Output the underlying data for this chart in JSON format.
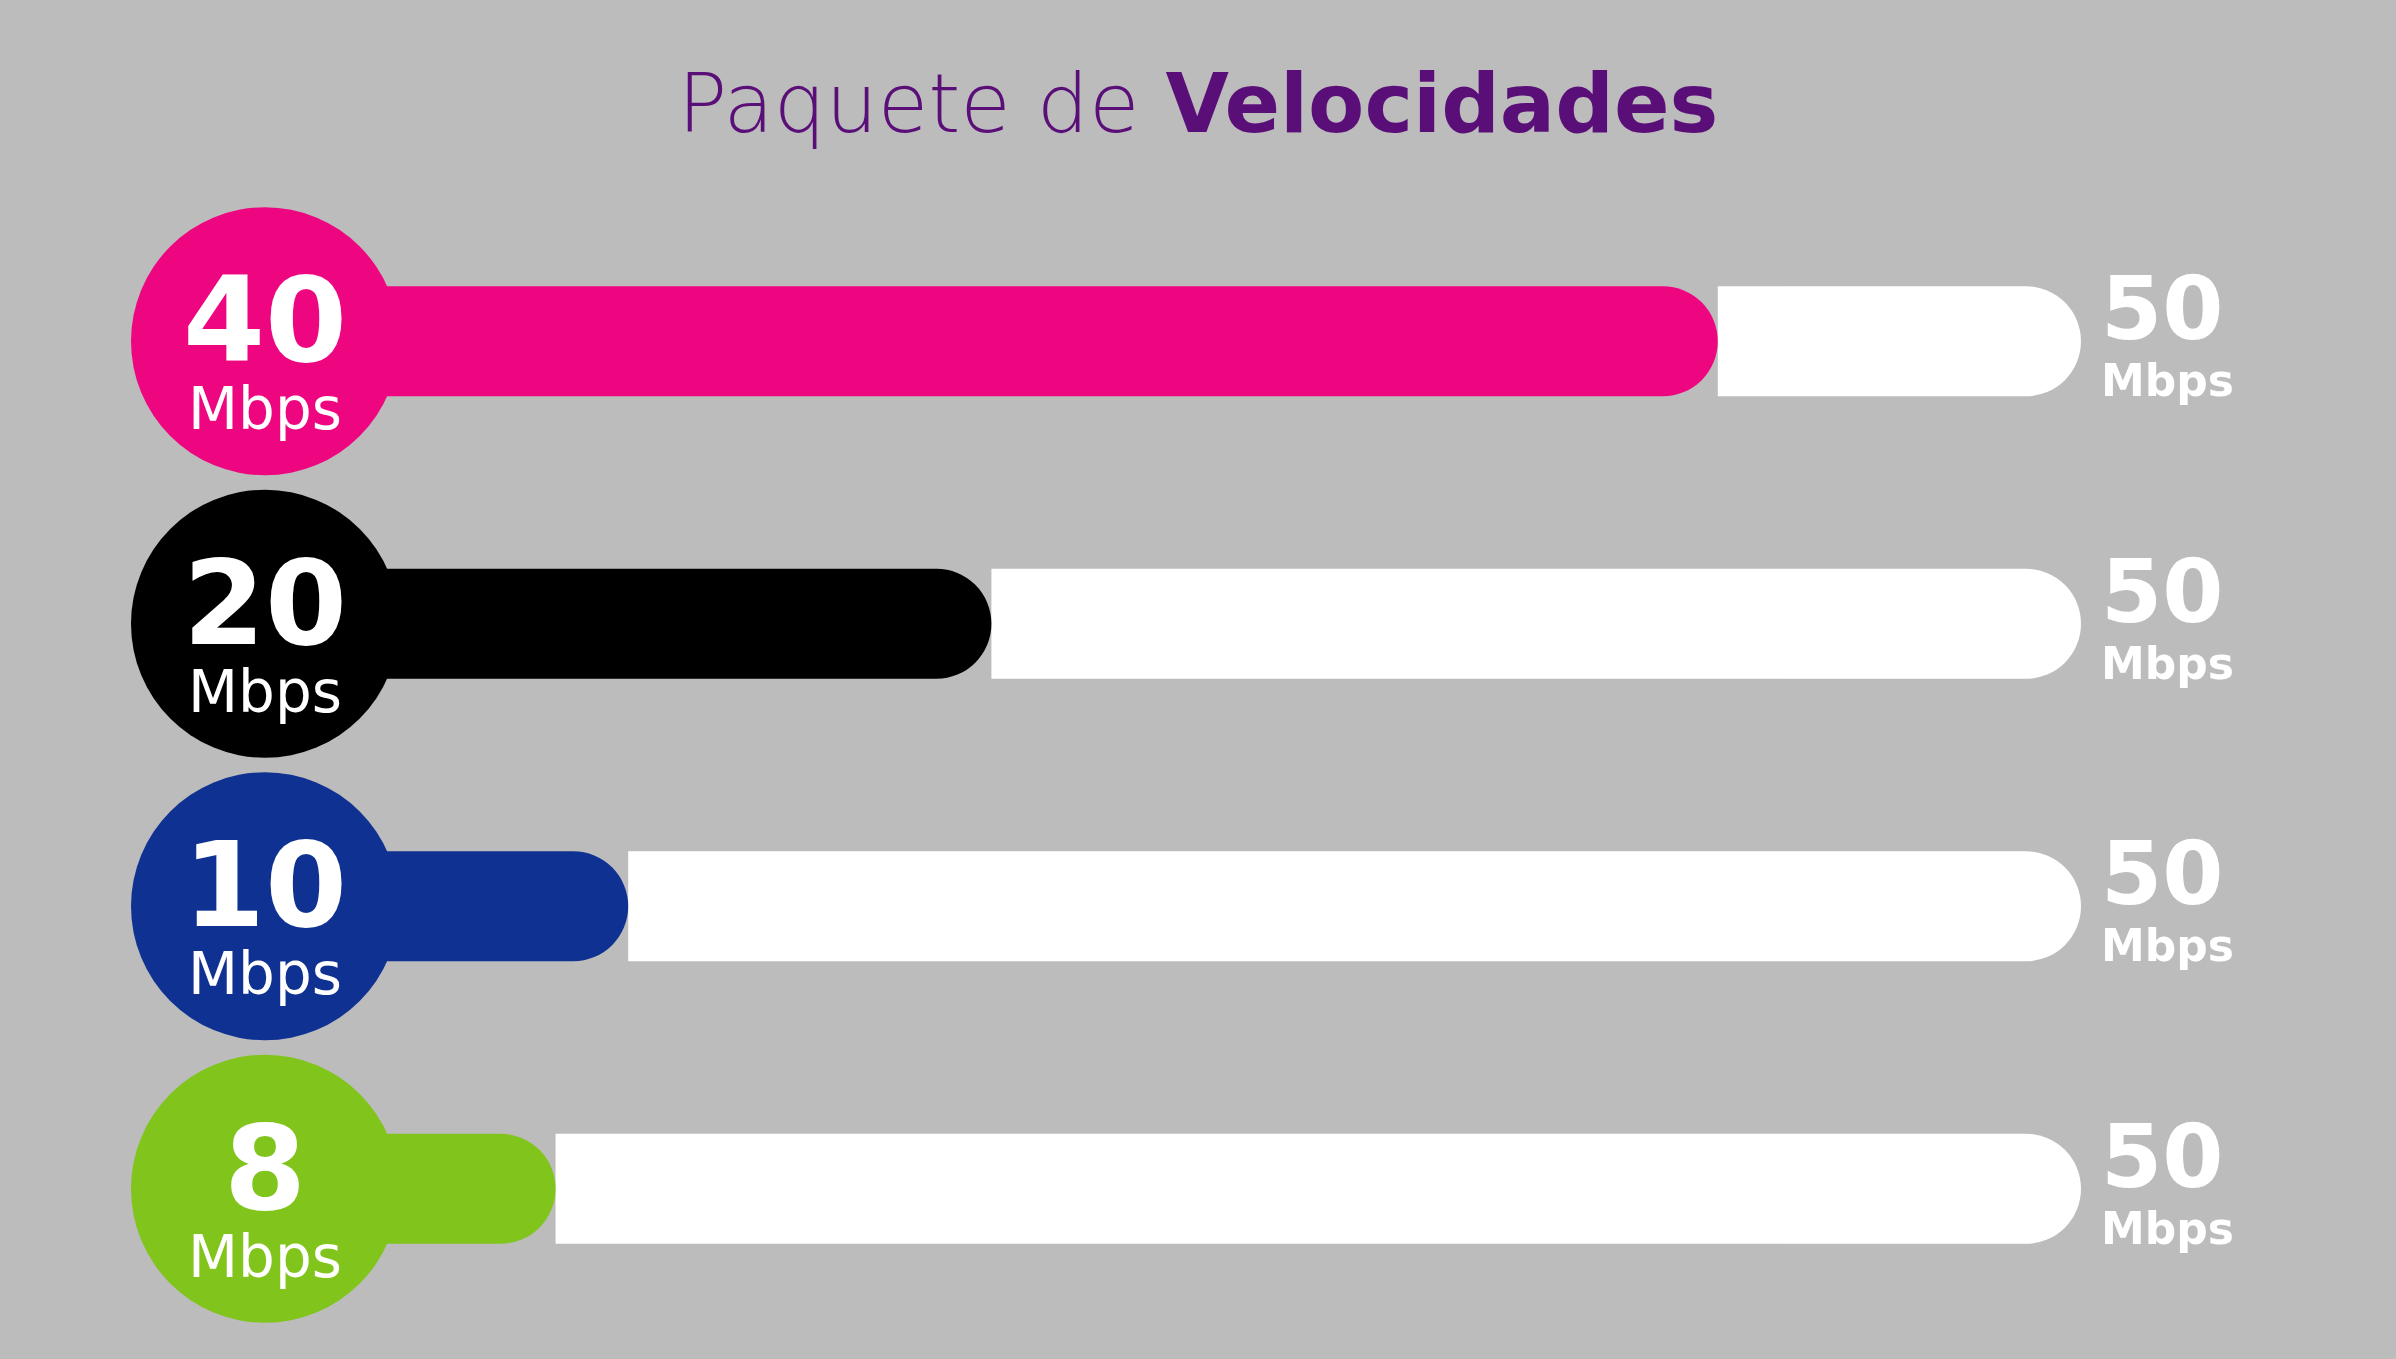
{
  "chart_data": {
    "type": "bar",
    "title": "Paquete de Velocidades",
    "orientation": "horizontal",
    "stacked": true,
    "categories": [
      null,
      null,
      null,
      null
    ],
    "xlim": [
      0,
      50
    ],
    "tick_labels": false,
    "series": [
      {
        "colors": [
          "#ee0680",
          "#000000",
          "#0f3192",
          "#80c41c"
        ],
        "values": [
          40,
          20,
          10,
          8
        ],
        "value_labels": [
          "40 Mbps",
          "20 Mbps",
          "10 Mbps",
          "8 Mbps"
        ]
      },
      {
        "color": "#ffffff",
        "values": [
          10,
          30,
          40,
          42
        ]
      }
    ],
    "totals": [
      "50 Mbps",
      "50 Mbps",
      "50 Mbps",
      "50 Mbps"
    ]
  }
}
